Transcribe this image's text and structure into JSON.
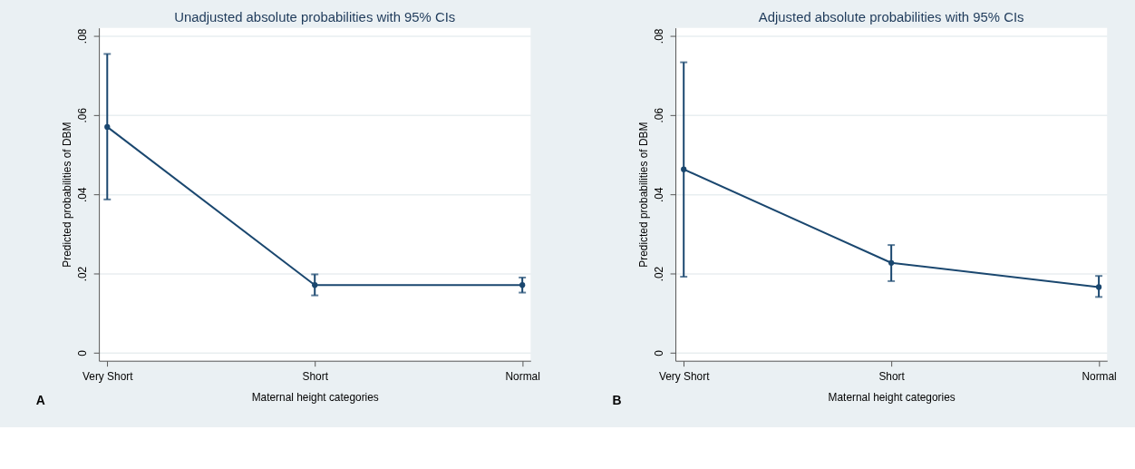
{
  "chart_data": [
    {
      "type": "line",
      "title": "Unadjusted absolute probabilities with 95% CIs",
      "xlabel": "Maternal height categories",
      "ylabel": "Predicted probabilities of DBM",
      "categories": [
        "Very Short",
        "Short",
        "Normal"
      ],
      "series": [
        {
          "color": "#1a476f",
          "values": [
            0.057,
            0.0171,
            0.0171
          ],
          "errors": [
            [
              0.0387,
              0.0754
            ],
            [
              0.0145,
              0.0198
            ],
            [
              0.0152,
              0.019
            ]
          ]
        }
      ],
      "ylim": [
        -0.002,
        0.082
      ],
      "yticks": [
        {
          "value": 0,
          "label": "0"
        },
        {
          "value": 0.02,
          "label": ".02"
        },
        {
          "value": 0.04,
          "label": ".04"
        },
        {
          "value": 0.06,
          "label": ".06"
        },
        {
          "value": 0.08,
          "label": ".08"
        }
      ],
      "grid": "y",
      "marker": "circle",
      "line_style": "solid",
      "annotations": [
        "A"
      ]
    },
    {
      "type": "line",
      "title": "Adjusted absolute probabilities with 95% CIs",
      "xlabel": "Maternal height categories",
      "ylabel": "Predicted probabilities of DBM",
      "categories": [
        "Very Short",
        "Short",
        "Normal"
      ],
      "series": [
        {
          "color": "#1a476f",
          "values": [
            0.0463,
            0.0227,
            0.0166
          ],
          "errors": [
            [
              0.0192,
              0.0733
            ],
            [
              0.0181,
              0.0272
            ],
            [
              0.0141,
              0.0194
            ]
          ]
        }
      ],
      "ylim": [
        -0.002,
        0.082
      ],
      "yticks": [
        {
          "value": 0,
          "label": "0"
        },
        {
          "value": 0.02,
          "label": ".02"
        },
        {
          "value": 0.04,
          "label": ".04"
        },
        {
          "value": 0.06,
          "label": ".06"
        },
        {
          "value": 0.08,
          "label": ".08"
        }
      ],
      "grid": "y",
      "marker": "circle",
      "line_style": "solid",
      "annotations": [
        "B"
      ]
    }
  ]
}
